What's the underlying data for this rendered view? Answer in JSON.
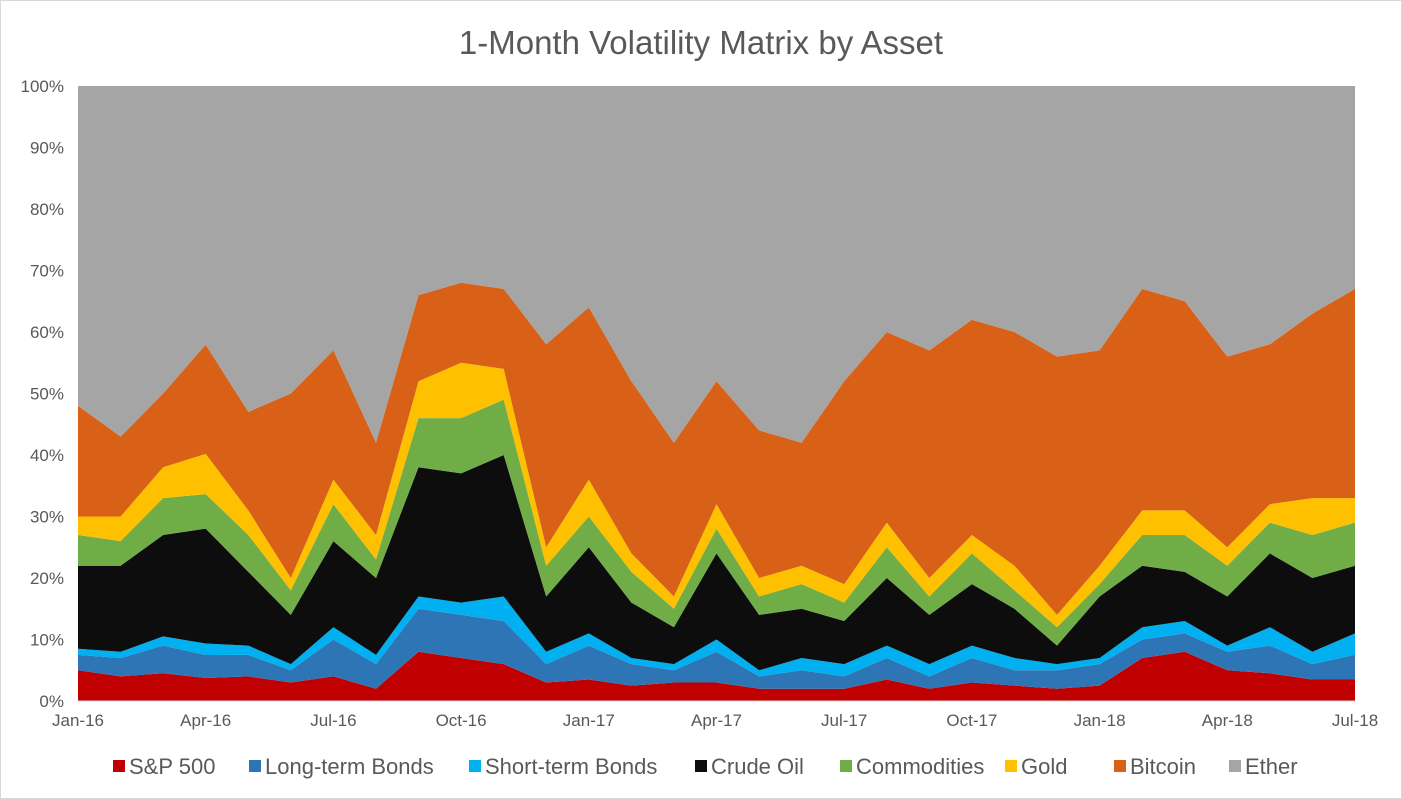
{
  "chart_data": {
    "type": "area",
    "stacking": "percent",
    "title": "1-Month Volatility Matrix by Asset",
    "xlabel": "",
    "ylabel": "",
    "ylim": [
      0,
      100
    ],
    "y_ticks": [
      "0%",
      "10%",
      "20%",
      "30%",
      "40%",
      "50%",
      "60%",
      "70%",
      "80%",
      "90%",
      "100%"
    ],
    "x_ticks": [
      "Jan-16",
      "Apr-16",
      "Jul-16",
      "Oct-16",
      "Jan-17",
      "Apr-17",
      "Jul-17",
      "Oct-17",
      "Jan-18",
      "Apr-18",
      "Jul-18"
    ],
    "x_months_from_jan16": [
      0,
      1,
      2,
      3,
      4,
      5,
      6,
      7,
      8,
      9,
      10,
      11,
      12,
      13,
      14,
      15,
      16,
      17,
      18,
      19,
      20,
      21,
      22,
      23,
      24,
      25,
      26,
      27,
      28,
      29,
      30
    ],
    "grid": false,
    "legend_position": "bottom",
    "series": [
      {
        "name": "S&P 500",
        "color": "#C00000",
        "values": [
          5,
          4,
          4.5,
          4,
          4,
          3,
          4,
          2,
          8,
          7,
          6,
          3,
          3.5,
          2.5,
          3,
          3,
          2,
          2,
          2,
          3.5,
          2,
          3,
          2.5,
          2,
          2.5,
          7,
          8,
          5,
          4.5,
          3.5,
          3.5
        ]
      },
      {
        "name": "Long-term Bonds",
        "color": "#2E75B6",
        "values": [
          2.5,
          3,
          4.5,
          4,
          3.5,
          2,
          6,
          4,
          7,
          7,
          7,
          3,
          5.5,
          3.5,
          2,
          5,
          2,
          3,
          2,
          3.5,
          2,
          4,
          2.5,
          3,
          3.5,
          3,
          3,
          3,
          4.5,
          2.5,
          4
        ]
      },
      {
        "name": "Short-term Bonds",
        "color": "#00B0F0",
        "values": [
          1,
          1,
          1.5,
          2,
          1.5,
          1,
          2,
          1.5,
          2,
          2,
          4,
          2,
          2,
          1,
          1,
          2,
          1,
          2,
          2,
          2,
          2,
          2,
          2,
          1,
          1,
          2,
          2,
          1,
          3,
          2,
          3.5
        ]
      },
      {
        "name": "Crude Oil",
        "color": "#0D0D0D",
        "values": [
          13.5,
          14,
          16.5,
          20,
          12,
          8,
          14,
          12.5,
          21,
          21,
          23,
          9,
          14,
          9,
          6,
          14,
          9,
          8,
          7,
          11,
          8,
          10,
          8,
          3,
          10,
          10,
          8,
          8,
          12,
          12,
          11
        ]
      },
      {
        "name": "Commodities",
        "color": "#70AD47",
        "values": [
          5,
          4,
          6,
          6,
          6,
          4,
          6,
          3,
          8,
          9,
          9,
          5,
          5,
          5,
          3,
          4,
          3,
          4,
          3,
          5,
          3,
          5,
          3,
          3,
          2,
          5,
          6,
          5,
          5,
          7,
          7
        ]
      },
      {
        "name": "Gold",
        "color": "#FFC000",
        "values": [
          3,
          4,
          5,
          7,
          4,
          2,
          4,
          4,
          6,
          9,
          5,
          3,
          6,
          3,
          2,
          4,
          3,
          3,
          3,
          4,
          3,
          3,
          4,
          2,
          3,
          4,
          4,
          3,
          3,
          6,
          4
        ]
      },
      {
        "name": "Bitcoin",
        "color": "#D86017",
        "values": [
          18,
          13,
          12,
          19,
          16,
          30,
          21,
          15,
          14,
          13,
          13,
          33,
          28,
          28,
          25,
          20,
          24,
          20,
          33,
          31,
          37,
          35,
          38,
          42,
          35,
          36,
          34,
          31,
          26,
          30,
          34
        ]
      },
      {
        "name": "Ether",
        "color": "#A5A5A5",
        "values": [
          52,
          57,
          50,
          45,
          53,
          50,
          43,
          58,
          34,
          32,
          33,
          42,
          36,
          48,
          58,
          48,
          56,
          58,
          48,
          40,
          43,
          38,
          40,
          44,
          43,
          33,
          35,
          44,
          42,
          37,
          33
        ]
      }
    ]
  }
}
